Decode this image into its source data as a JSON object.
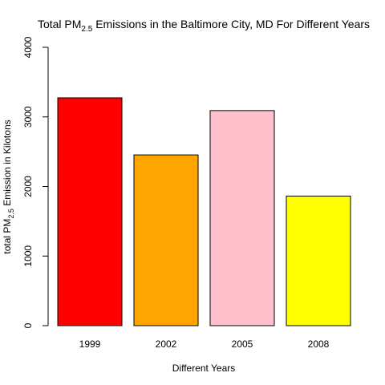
{
  "chart_data": {
    "type": "bar",
    "title_main": "Total PM",
    "title_sub": "2.5",
    "title_rest": " Emissions in the Baltimore City, MD For Different Years",
    "xlabel": "Different Years",
    "ylabel_main": "total PM",
    "ylabel_sub": "2.5",
    "ylabel_rest": " Emission in Kilotons",
    "categories": [
      "1999",
      "2002",
      "2005",
      "2008"
    ],
    "values": [
      3274,
      2454,
      3091,
      1862
    ],
    "colors": [
      "#ff0000",
      "#ffa500",
      "#ffc0cb",
      "#ffff00"
    ],
    "ylim": [
      0,
      4000
    ],
    "yticks": [
      0,
      1000,
      2000,
      3000,
      4000
    ],
    "grid": false,
    "legend": "none"
  }
}
